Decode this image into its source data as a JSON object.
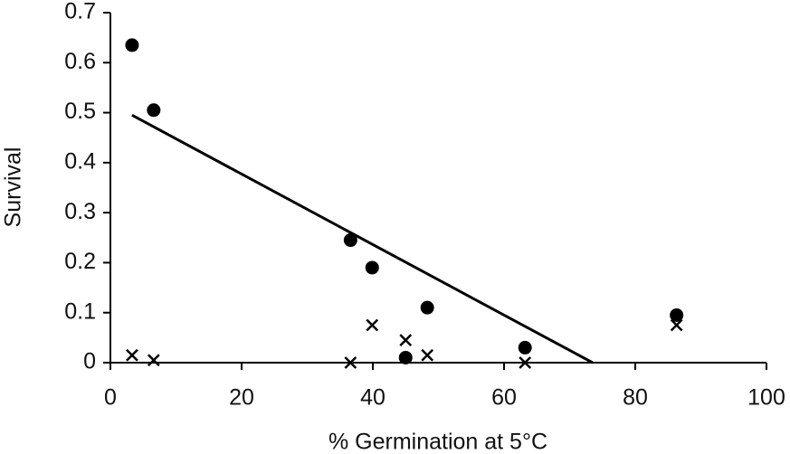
{
  "chart_data": {
    "type": "scatter",
    "x_label": "% Germination at 5°C",
    "y_label": "Survival",
    "xlim": [
      0,
      100
    ],
    "xticks": [
      0,
      20,
      40,
      60,
      80,
      100
    ],
    "ylim": [
      0,
      0.7
    ],
    "yticks": [
      0,
      0.1,
      0.2,
      0.3,
      0.4,
      0.5,
      0.6,
      0.7
    ],
    "grid": false,
    "series": [
      {
        "marker": "circle",
        "color": "#000000",
        "x": [
          3.3,
          6.6,
          36.6,
          39.9,
          45.0,
          48.3,
          63.2,
          86.3
        ],
        "values": [
          0.635,
          0.505,
          0.245,
          0.19,
          0.01,
          0.11,
          0.03,
          0.095
        ]
      },
      {
        "marker": "cross",
        "color": "#000000",
        "x": [
          3.3,
          6.6,
          36.6,
          39.9,
          45.0,
          48.3,
          63.2,
          86.3
        ],
        "values": [
          0.015,
          0.005,
          0,
          0.075,
          0.045,
          0.015,
          0,
          0.075
        ]
      },
      {
        "marker": "line",
        "color": "#000000",
        "x": [
          3.3,
          73.5
        ],
        "values": [
          0.495,
          0
        ]
      }
    ]
  }
}
